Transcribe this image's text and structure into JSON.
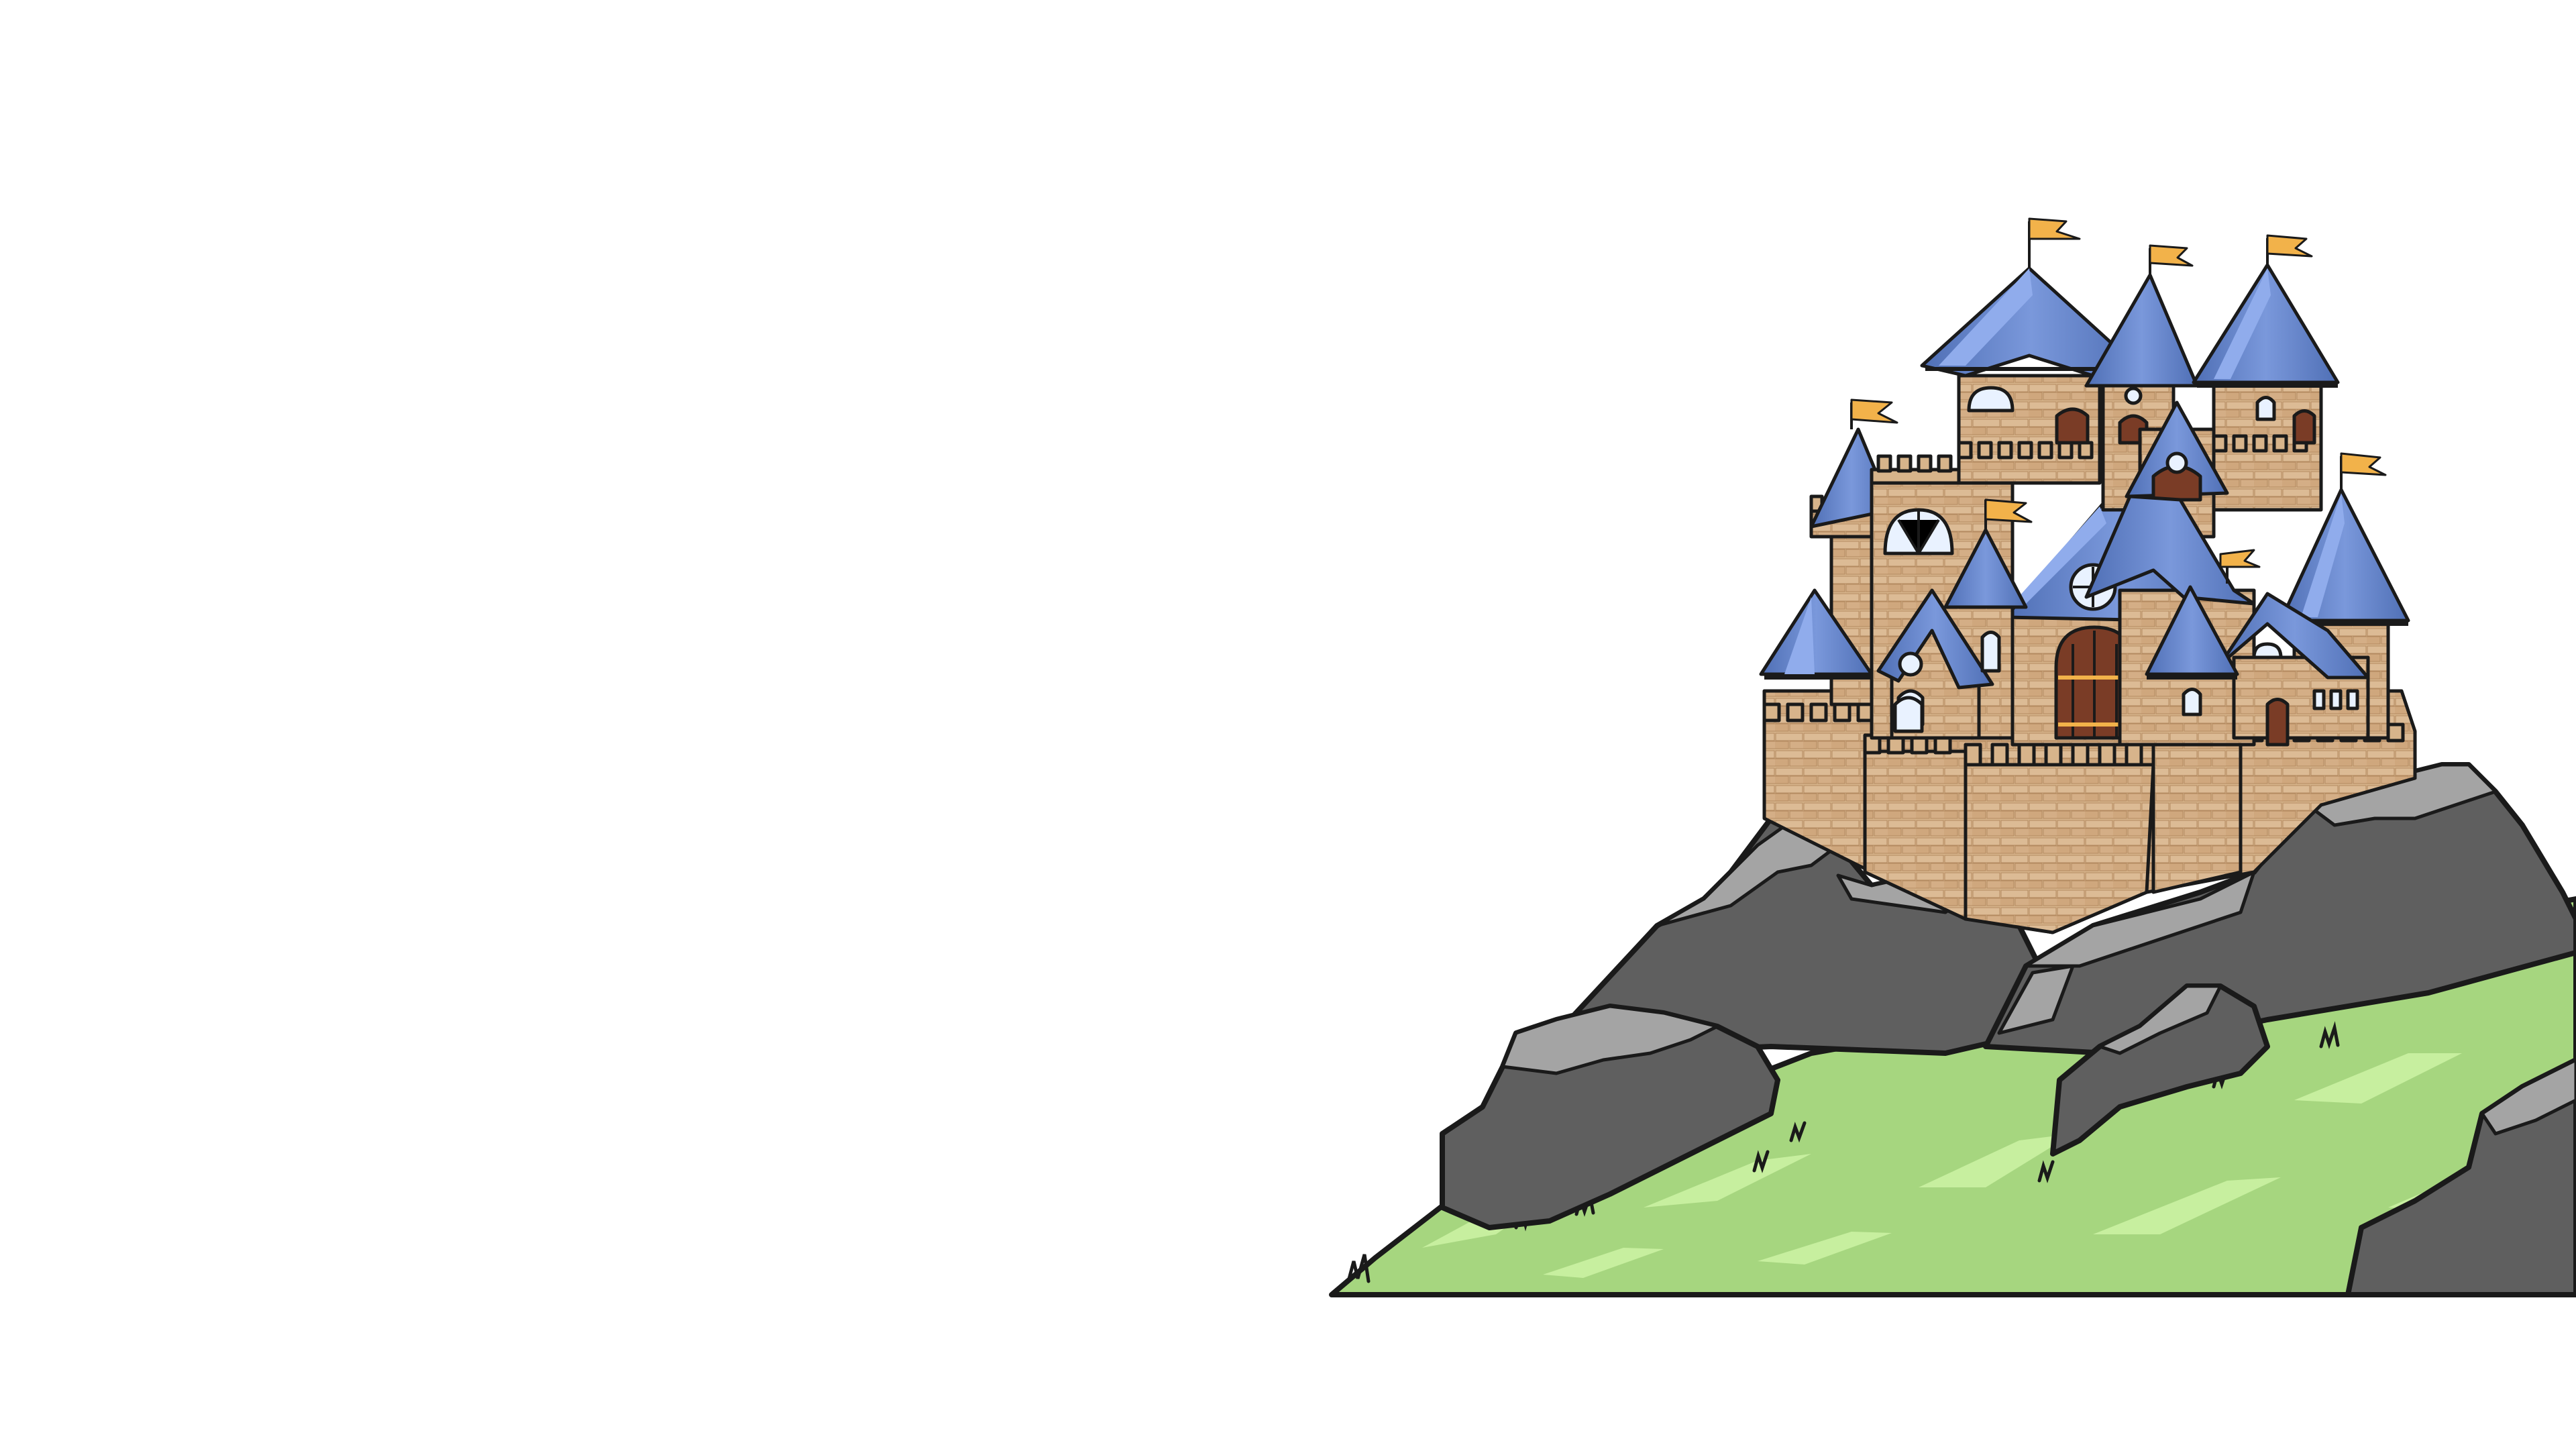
{
  "scene": {
    "description_tokens": [],
    "colors": {
      "background": "#ffffff",
      "outline": "#1a1a1a",
      "grass": "#a6d67f",
      "grass_highlight": "#c7ef9f",
      "grass_dark": "#7fb35e",
      "rock_dark": "#5a5a5a",
      "rock_mid": "#7b7b7b",
      "rock_light": "#a4a4a4",
      "stone": "#d7b48b",
      "stone_shadow": "#c19a70",
      "roof": "#6f8fd1",
      "roof_dark": "#4f6fb5",
      "roof_light": "#90acec",
      "door": "#7a3c26",
      "flag": "#f2b24a",
      "window": "#e9f2ff"
    },
    "elements": [
      "castle",
      "rocky-hill",
      "grass-slope",
      "flags"
    ]
  }
}
